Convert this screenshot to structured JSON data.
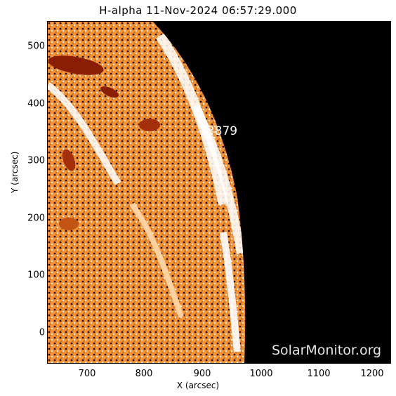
{
  "title": "H-alpha 11-Nov-2024 06:57:29.000",
  "axes": {
    "xlabel": "X (arcsec)",
    "ylabel": "Y (arcsec)",
    "xticks": [
      "700",
      "800",
      "900",
      "1000",
      "1100",
      "1200"
    ],
    "yticks": [
      "500",
      "400",
      "300",
      "200",
      "100",
      "0"
    ]
  },
  "region_label": "13879",
  "watermark": "SolarMonitor.org",
  "colors": {
    "background": "#000000",
    "disk_base": "#f08a2a",
    "disk_bright": "#ffffff",
    "filament": "#8a1e05"
  }
}
